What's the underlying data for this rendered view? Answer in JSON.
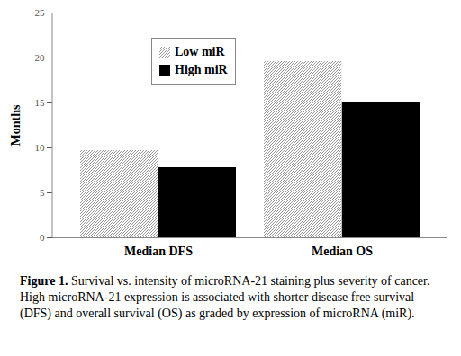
{
  "chart_data": {
    "type": "bar",
    "caption": "Figure 1. Survival vs. intensity of microRNA-21 staining plus severity of cancer. High microRNA-21 expression is associated with shorter disease free survival (DFS) and overall survival (OS) as graded by expression of microRNA (miR).",
    "y_label": "Months",
    "categories": [
      "Median DFS",
      "Median OS"
    ],
    "series": [
      {
        "name": "Low miR",
        "color": "#8c8c8c",
        "values": [
          9.7,
          19.6
        ]
      },
      {
        "name": "High miR",
        "color": "#000000",
        "values": [
          7.8,
          15.0
        ]
      }
    ],
    "ylim": [
      0,
      25
    ],
    "yticks": [
      0,
      5,
      10,
      15,
      20,
      25
    ],
    "grid": false,
    "legend": "upper left"
  }
}
